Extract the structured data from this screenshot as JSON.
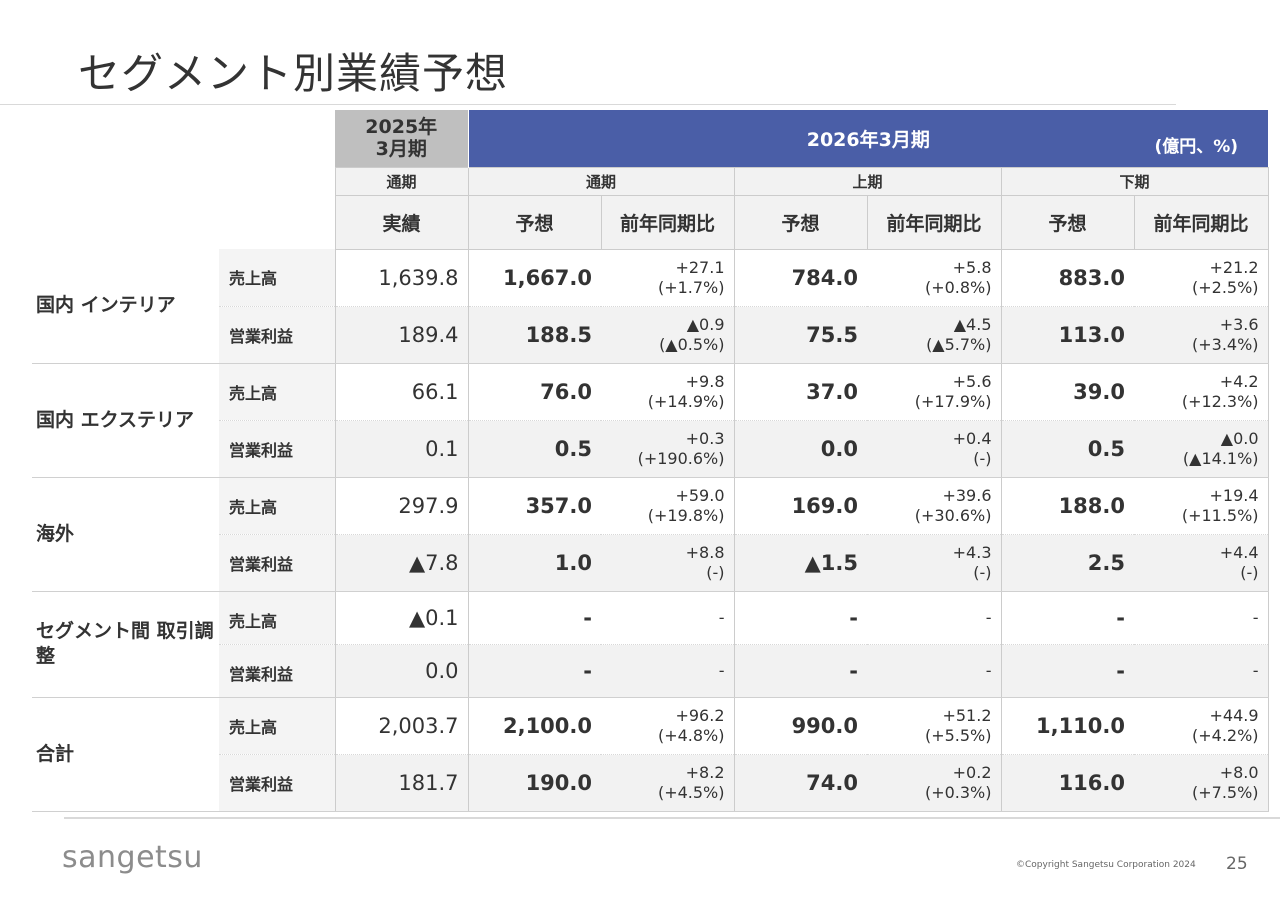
{
  "title": "セグメント別業績予想",
  "header": {
    "prev_year_label": "2025年\n3月期",
    "fy_label": "2026年3月期",
    "unit": "(億円、%)",
    "periods": {
      "prev_full": "通期",
      "full": "通期",
      "first_half": "上期",
      "second_half": "下期"
    },
    "cols": {
      "actual": "実績",
      "forecast": "予想",
      "yoy": "前年同期比"
    }
  },
  "segments": [
    {
      "name": "国内\nインテリア",
      "rows": [
        {
          "metric": "売上高",
          "actual": "1,639.8",
          "full_fc": "1,667.0",
          "full_yoy1": "+27.1",
          "full_yoy2": "(+1.7%)",
          "h1_fc": "784.0",
          "h1_yoy1": "+5.8",
          "h1_yoy2": "(+0.8%)",
          "h2_fc": "883.0",
          "h2_yoy1": "+21.2",
          "h2_yoy2": "(+2.5%)"
        },
        {
          "metric": "営業利益",
          "actual": "189.4",
          "full_fc": "188.5",
          "full_yoy1": "▲0.9",
          "full_yoy2": "(▲0.5%)",
          "h1_fc": "75.5",
          "h1_yoy1": "▲4.5",
          "h1_yoy2": "(▲5.7%)",
          "h2_fc": "113.0",
          "h2_yoy1": "+3.6",
          "h2_yoy2": "(+3.4%)"
        }
      ]
    },
    {
      "name": "国内\nエクステリア",
      "rows": [
        {
          "metric": "売上高",
          "actual": "66.1",
          "full_fc": "76.0",
          "full_yoy1": "+9.8",
          "full_yoy2": "(+14.9%)",
          "h1_fc": "37.0",
          "h1_yoy1": "+5.6",
          "h1_yoy2": "(+17.9%)",
          "h2_fc": "39.0",
          "h2_yoy1": "+4.2",
          "h2_yoy2": "(+12.3%)"
        },
        {
          "metric": "営業利益",
          "actual": "0.1",
          "full_fc": "0.5",
          "full_yoy1": "+0.3",
          "full_yoy2": "(+190.6%)",
          "h1_fc": "0.0",
          "h1_yoy1": "+0.4",
          "h1_yoy2": "(-)",
          "h2_fc": "0.5",
          "h2_yoy1": "▲0.0",
          "h2_yoy2": "(▲14.1%)"
        }
      ]
    },
    {
      "name": "海外",
      "rows": [
        {
          "metric": "売上高",
          "actual": "297.9",
          "full_fc": "357.0",
          "full_yoy1": "+59.0",
          "full_yoy2": "(+19.8%)",
          "h1_fc": "169.0",
          "h1_yoy1": "+39.6",
          "h1_yoy2": "(+30.6%)",
          "h2_fc": "188.0",
          "h2_yoy1": "+19.4",
          "h2_yoy2": "(+11.5%)"
        },
        {
          "metric": "営業利益",
          "actual": "▲7.8",
          "full_fc": "1.0",
          "full_yoy1": "+8.8",
          "full_yoy2": "(-)",
          "h1_fc": "▲1.5",
          "h1_yoy1": "+4.3",
          "h1_yoy2": "(-)",
          "h2_fc": "2.5",
          "h2_yoy1": "+4.4",
          "h2_yoy2": "(-)"
        }
      ]
    },
    {
      "name": "セグメント間\n取引調整",
      "rows": [
        {
          "metric": "売上高",
          "actual": "▲0.1",
          "full_fc": "-",
          "full_yoy1": "-",
          "full_yoy2": "",
          "h1_fc": "-",
          "h1_yoy1": "-",
          "h1_yoy2": "",
          "h2_fc": "-",
          "h2_yoy1": "-",
          "h2_yoy2": ""
        },
        {
          "metric": "営業利益",
          "actual": "0.0",
          "full_fc": "-",
          "full_yoy1": "-",
          "full_yoy2": "",
          "h1_fc": "-",
          "h1_yoy1": "-",
          "h1_yoy2": "",
          "h2_fc": "-",
          "h2_yoy1": "-",
          "h2_yoy2": ""
        }
      ]
    },
    {
      "name": "合計",
      "rows": [
        {
          "metric": "売上高",
          "actual": "2,003.7",
          "full_fc": "2,100.0",
          "full_yoy1": "+96.2",
          "full_yoy2": "(+4.8%)",
          "h1_fc": "990.0",
          "h1_yoy1": "+51.2",
          "h1_yoy2": "(+5.5%)",
          "h2_fc": "1,110.0",
          "h2_yoy1": "+44.9",
          "h2_yoy2": "(+4.2%)"
        },
        {
          "metric": "営業利益",
          "actual": "181.7",
          "full_fc": "190.0",
          "full_yoy1": "+8.2",
          "full_yoy2": "(+4.5%)",
          "h1_fc": "74.0",
          "h1_yoy1": "+0.2",
          "h1_yoy2": "(+0.3%)",
          "h2_fc": "116.0",
          "h2_yoy1": "+8.0",
          "h2_yoy2": "(+7.5%)"
        }
      ]
    }
  ],
  "footer": {
    "logo": "sangetsu",
    "copyright": "©Copyright Sangetsu Corporation 2024",
    "page_number": "25"
  }
}
